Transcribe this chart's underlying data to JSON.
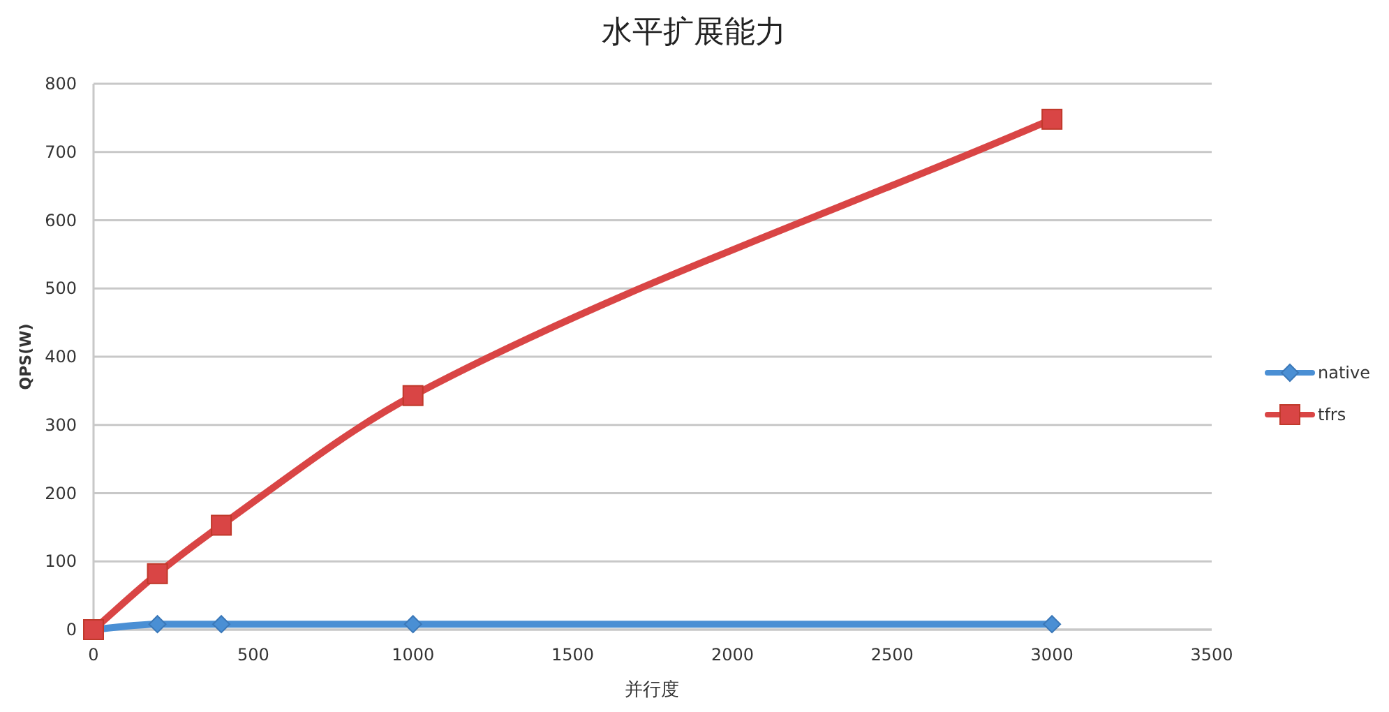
{
  "chart_data": {
    "type": "line",
    "title": "水平扩展能力",
    "xlabel": "并行度",
    "ylabel": "QPS(W)",
    "x": [
      0,
      200,
      400,
      1000,
      3000
    ],
    "series": [
      {
        "name": "native",
        "color": "#4a8fd4",
        "marker": "diamond",
        "values": [
          0,
          8,
          8,
          8,
          8
        ]
      },
      {
        "name": "tfrs",
        "color": "#d94545",
        "marker": "square",
        "values": [
          0,
          82,
          153,
          343,
          748
        ]
      }
    ],
    "xlim": [
      0,
      3500
    ],
    "xticks": [
      0,
      500,
      1000,
      1500,
      2000,
      2500,
      3000,
      3500
    ],
    "ylim": [
      0,
      800
    ],
    "yticks": [
      0,
      100,
      200,
      300,
      400,
      500,
      600,
      700,
      800
    ],
    "grid": "y",
    "legend": "right",
    "line_style": "solid"
  }
}
